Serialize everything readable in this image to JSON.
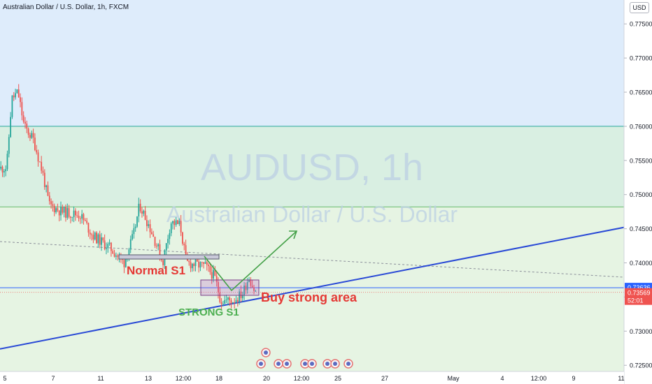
{
  "header": {
    "symbol_title": "Australian Dollar / U.S. Dollar, 1h, FXCM",
    "currency": "USD"
  },
  "watermark": {
    "ticker": "AUDUSD, 1h",
    "name": "Australian Dollar / U.S. Dollar"
  },
  "price_axis": {
    "ticks": [
      "0.77500",
      "0.77000",
      "0.76500",
      "0.76000",
      "0.75500",
      "0.75000",
      "0.74500",
      "0.74000",
      "0.73500",
      "0.73000",
      "0.72500"
    ],
    "tick_values": [
      0.775,
      0.77,
      0.765,
      0.76,
      0.755,
      0.75,
      0.745,
      0.74,
      0.735,
      0.73,
      0.725
    ],
    "label_blue": "0.73636",
    "label_blue_value": 0.73636,
    "label_red": "0.73569",
    "label_red_value": 0.73569,
    "countdown": "52:01"
  },
  "time_axis": {
    "ticks": [
      "5",
      "7",
      "11",
      "13",
      "12:00",
      "18",
      "20",
      "12:00",
      "25",
      "27",
      "May",
      "4",
      "12:00",
      "9",
      "11"
    ]
  },
  "annotations": {
    "normal_s1": "Normal S1",
    "strong_s1": "STRONG S1",
    "buy_area": "Buy strong area"
  },
  "colors": {
    "zone_top": "#deecfb",
    "zone_mid": "#d9efe2",
    "zone_low": "#e6f4e3",
    "teal_line": "#26a69a",
    "green_line": "#66bb6a",
    "blue_line": "#2962ff",
    "trend_line": "#2949d6",
    "up_candle": "#26a69a",
    "down_candle": "#ef5350",
    "normal_s1": "#e53935",
    "strong_s1": "#4caf50",
    "buy_area": "#e53935",
    "green_arrow": "#43a047",
    "watermark": "#bcd0e4"
  },
  "chart_data": {
    "type": "candlestick",
    "symbol": "AUDUSD",
    "timeframe": "1h",
    "y_range": [
      0.7241,
      0.7785
    ],
    "levels": [
      {
        "name": "resistance",
        "value": 0.76
      },
      {
        "name": "support",
        "value": 0.7482
      },
      {
        "name": "current-line",
        "value": 0.73636
      }
    ],
    "trendline": [
      {
        "x": 0,
        "y": 0.7274
      },
      {
        "x": 1,
        "y": 0.7452
      }
    ],
    "path_series": [
      {
        "x": 0.0,
        "y": 0.7538
      },
      {
        "x": 0.012,
        "y": 0.754
      },
      {
        "x": 0.02,
        "y": 0.764
      },
      {
        "x": 0.03,
        "y": 0.765
      },
      {
        "x": 0.04,
        "y": 0.76
      },
      {
        "x": 0.055,
        "y": 0.758
      },
      {
        "x": 0.07,
        "y": 0.753
      },
      {
        "x": 0.08,
        "y": 0.7485
      },
      {
        "x": 0.1,
        "y": 0.7475
      },
      {
        "x": 0.13,
        "y": 0.747
      },
      {
        "x": 0.15,
        "y": 0.744
      },
      {
        "x": 0.18,
        "y": 0.742
      },
      {
        "x": 0.2,
        "y": 0.74
      },
      {
        "x": 0.215,
        "y": 0.744
      },
      {
        "x": 0.225,
        "y": 0.7485
      },
      {
        "x": 0.24,
        "y": 0.7455
      },
      {
        "x": 0.255,
        "y": 0.742
      },
      {
        "x": 0.262,
        "y": 0.74
      },
      {
        "x": 0.275,
        "y": 0.746
      },
      {
        "x": 0.29,
        "y": 0.7455
      },
      {
        "x": 0.3,
        "y": 0.74
      },
      {
        "x": 0.33,
        "y": 0.7395
      },
      {
        "x": 0.345,
        "y": 0.738
      },
      {
        "x": 0.355,
        "y": 0.7345
      },
      {
        "x": 0.375,
        "y": 0.7345
      },
      {
        "x": 0.39,
        "y": 0.7355
      },
      {
        "x": 0.4,
        "y": 0.738
      },
      {
        "x": 0.41,
        "y": 0.7357
      }
    ]
  }
}
